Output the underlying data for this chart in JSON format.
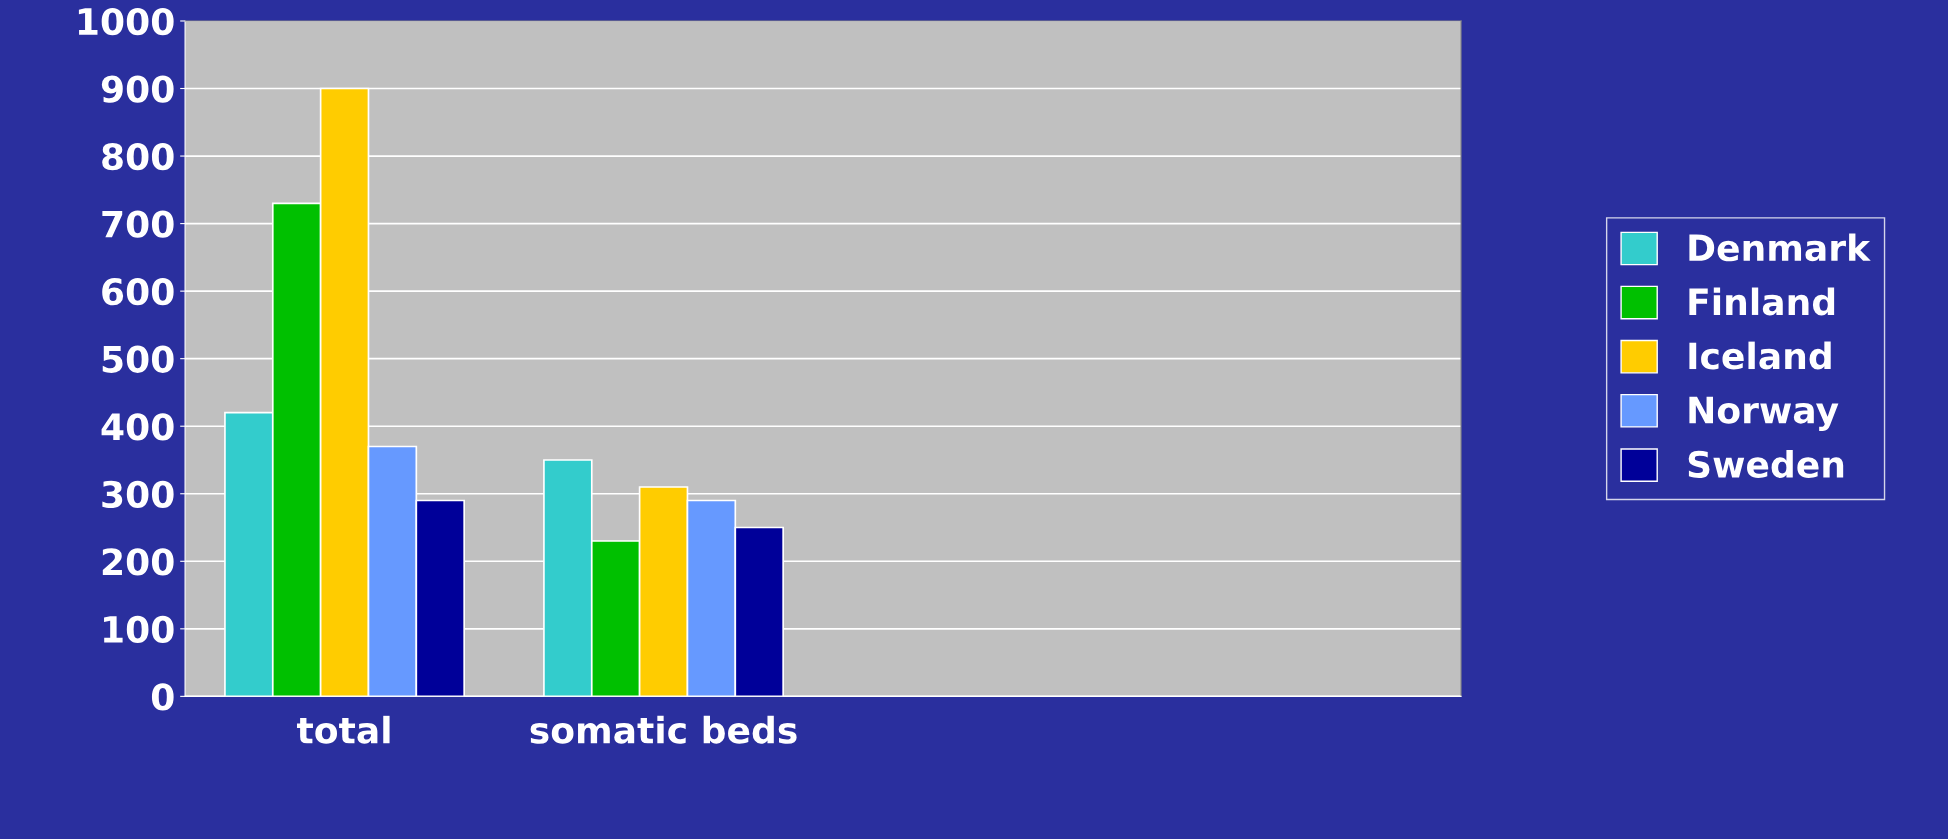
{
  "chart_data": {
    "type": "bar",
    "categories": [
      "total",
      "somatic beds",
      null,
      null
    ],
    "series": [
      {
        "name": "Denmark",
        "color": "#33cccc",
        "values": [
          420,
          350,
          null,
          null
        ]
      },
      {
        "name": "Finland",
        "color": "#00c000",
        "values": [
          730,
          230,
          null,
          null
        ]
      },
      {
        "name": "Iceland",
        "color": "#ffcc00",
        "values": [
          900,
          310,
          null,
          null
        ]
      },
      {
        "name": "Norway",
        "color": "#6699ff",
        "values": [
          370,
          290,
          null,
          null
        ]
      },
      {
        "name": "Sweden",
        "color": "#000099",
        "values": [
          290,
          250,
          null,
          null
        ]
      }
    ],
    "ylim": [
      0,
      1000
    ],
    "yticks": [
      0,
      100,
      200,
      300,
      400,
      500,
      600,
      700,
      800,
      900,
      1000
    ],
    "grid": "y",
    "legend": "right"
  }
}
